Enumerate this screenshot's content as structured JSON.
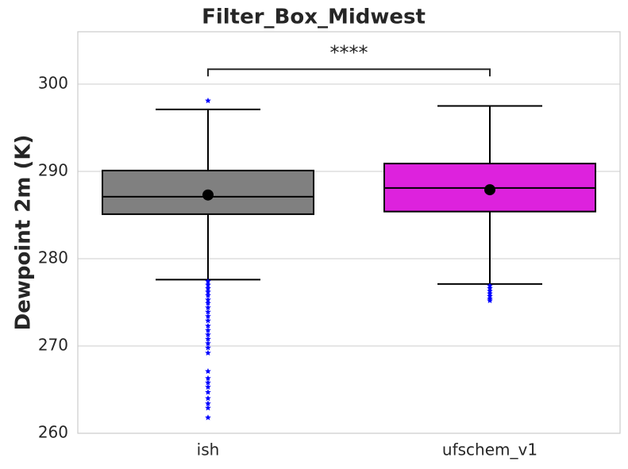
{
  "chart_data": {
    "type": "box",
    "title": "Filter_Box_Midwest",
    "ylabel": "Dewpoint 2m (K)",
    "categories": [
      "ish",
      "ufschem_v1"
    ],
    "boxes": [
      {
        "color": "#808080",
        "whislo": 277.6,
        "q1": 285.1,
        "med": 287.1,
        "q3": 290.1,
        "whishi": 297.1,
        "mean": 287.3,
        "fliers": [
          298.1,
          277.4,
          277.0,
          276.6,
          276.2,
          275.8,
          275.3,
          274.9,
          274.4,
          273.9,
          273.4,
          272.9,
          272.3,
          271.8,
          271.3,
          270.8,
          270.3,
          269.8,
          269.2,
          267.1,
          266.3,
          265.8,
          265.3,
          264.7,
          264.0,
          263.4,
          262.9,
          261.8
        ]
      },
      {
        "color": "#dd22dd",
        "whislo": 277.1,
        "q1": 285.4,
        "med": 288.1,
        "q3": 290.9,
        "whishi": 297.5,
        "mean": 287.9,
        "fliers": [
          276.9,
          276.6,
          276.3,
          276.0,
          275.7,
          275.4,
          275.2
        ]
      }
    ],
    "flier_color": "#0000ff",
    "mean_color": "#000000",
    "annotation": {
      "text": "****",
      "y": 301.7
    },
    "ylim": [
      260,
      306
    ],
    "yticks": [
      260,
      270,
      280,
      290,
      300
    ],
    "grid": true
  }
}
